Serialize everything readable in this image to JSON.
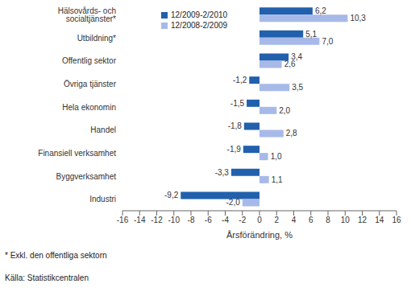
{
  "chart_data": {
    "type": "bar",
    "orientation": "horizontal",
    "categories": [
      "Hälsovårds- och socialtjänster*",
      "Utbildning*",
      "Offentlig sektor",
      "Övriga tjänster",
      "Hela ekonomin",
      "Handel",
      "Finansiell verksamhet",
      "Byggverksamhet",
      "Industri"
    ],
    "series": [
      {
        "name": "12/2009-2/2010",
        "color": "#2160ad",
        "values": [
          6.2,
          5.1,
          3.4,
          -1.2,
          -1.5,
          -1.8,
          -1.9,
          -3.3,
          -9.2
        ],
        "value_labels": [
          "6,2",
          "5,1",
          "3,4",
          "-1,2",
          "-1,5",
          "-1,8",
          "-1,9",
          "-3,3",
          "-9,2"
        ]
      },
      {
        "name": "12/2008-2/2009",
        "color": "#a7b9e8",
        "values": [
          10.3,
          7.0,
          2.6,
          3.5,
          2.0,
          2.8,
          1.0,
          1.1,
          -2.0
        ],
        "value_labels": [
          "10,3",
          "7,0",
          "2,6",
          "3,5",
          "2,0",
          "2,8",
          "1,0",
          "1,1",
          "-2,0"
        ]
      }
    ],
    "xlabel": "Årsförändring, %",
    "xlim": [
      -16,
      16
    ],
    "xticks": [
      -16,
      -14,
      -12,
      -10,
      -8,
      -6,
      -4,
      -2,
      0,
      2,
      4,
      6,
      8,
      10,
      12,
      14,
      16
    ],
    "grid": false,
    "legend": "upper left",
    "data_labels": true,
    "annotations": [
      "* Exkl. den offentliga sektorn",
      "Källa: Statistikcentralen"
    ]
  }
}
